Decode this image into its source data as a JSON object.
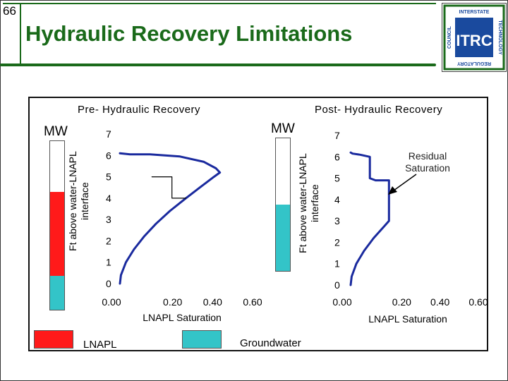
{
  "slide": {
    "number": "66",
    "title": "Hydraulic Recovery Limitations"
  },
  "logo": {
    "top_text": "INTERSTATE",
    "right_text": "TECHNOLOGY",
    "bottom_text": "REGULATORY",
    "left_text": "COUNCIL",
    "center_text": "ITRC"
  },
  "colors": {
    "title_green": "#1a6a1a",
    "lnapl_red": "#ff1a1a",
    "groundwater_cyan": "#33c4c8",
    "curve_blue": "#1a2a9e"
  },
  "panels": {
    "pre": {
      "title": "Pre- Hydraulic Recovery",
      "mw_label": "MW",
      "y_axis_label_line1": "Ft above water-LNAPL",
      "y_axis_label_line2": "interface",
      "column": {
        "white_fraction": 0.3,
        "red_fraction": 0.5,
        "cyan_fraction": 0.2
      }
    },
    "post": {
      "title": "Post- Hydraulic Recovery",
      "mw_label": "MW",
      "y_axis_label_line1": "Ft above water-LNAPL",
      "y_axis_label_line2": "interface",
      "annotation": "Residual\nSaturation",
      "column": {
        "white_fraction": 0.5,
        "cyan_fraction": 0.5
      }
    }
  },
  "chart_data": [
    {
      "type": "line",
      "title": "Pre- Hydraulic Recovery",
      "xlabel": "LNAPL Saturation",
      "ylabel": "Ft above water-LNAPL interface",
      "xlim": [
        0,
        0.6
      ],
      "ylim": [
        0,
        7
      ],
      "x_ticks": [
        "0.00",
        "0.20",
        "0.40",
        "0.60"
      ],
      "y_ticks": [
        "0",
        "1",
        "2",
        "3",
        "4",
        "5",
        "6",
        "7"
      ],
      "series": [
        {
          "name": "LNAPL saturation profile",
          "color": "#1a2a9e",
          "points": [
            [
              0,
              0
            ],
            [
              0.005,
              0.4
            ],
            [
              0.03,
              1
            ],
            [
              0.07,
              1.6
            ],
            [
              0.12,
              2.2
            ],
            [
              0.18,
              2.8
            ],
            [
              0.25,
              3.4
            ],
            [
              0.33,
              4
            ],
            [
              0.4,
              4.5
            ],
            [
              0.47,
              5.0
            ],
            [
              0.5,
              5.2
            ],
            [
              0.48,
              5.4
            ],
            [
              0.42,
              5.7
            ],
            [
              0.3,
              5.95
            ],
            [
              0.15,
              6.05
            ],
            [
              0.05,
              6.05
            ],
            [
              0,
              6.1
            ]
          ]
        },
        {
          "name": "reference step",
          "color": "#000000",
          "points": [
            [
              0.16,
              5.0
            ],
            [
              0.26,
              5.0
            ],
            [
              0.26,
              4.0
            ],
            [
              0.33,
              4.0
            ]
          ]
        }
      ]
    },
    {
      "type": "line",
      "title": "Post- Hydraulic Recovery",
      "xlabel": "LNAPL Saturation",
      "ylabel": "Ft above water-LNAPL interface",
      "xlim": [
        0,
        0.6
      ],
      "ylim": [
        0,
        7
      ],
      "x_ticks": [
        "0.00",
        "0.20",
        "0.40",
        "0.60"
      ],
      "y_ticks": [
        "0",
        "1",
        "2",
        "3",
        "4",
        "5",
        "6",
        "7"
      ],
      "annotation": "Residual Saturation",
      "series": [
        {
          "name": "LNAPL saturation profile",
          "color": "#1a2a9e",
          "points": [
            [
              0,
              0
            ],
            [
              0.005,
              0.4
            ],
            [
              0.03,
              1
            ],
            [
              0.07,
              1.6
            ],
            [
              0.12,
              2.2
            ],
            [
              0.17,
              2.7
            ],
            [
              0.2,
              3.0
            ],
            [
              0.2,
              3.6
            ],
            [
              0.2,
              4.0
            ],
            [
              0.2,
              4.5
            ],
            [
              0.2,
              4.9
            ],
            [
              0.13,
              4.9
            ],
            [
              0.1,
              5.0
            ],
            [
              0.1,
              5.5
            ],
            [
              0.1,
              6.0
            ],
            [
              0.05,
              6.1
            ],
            [
              0.01,
              6.15
            ],
            [
              0,
              6.2
            ]
          ]
        }
      ]
    }
  ],
  "legend": {
    "lnapl_label": "LNAPL",
    "groundwater_label": "Groundwater"
  }
}
